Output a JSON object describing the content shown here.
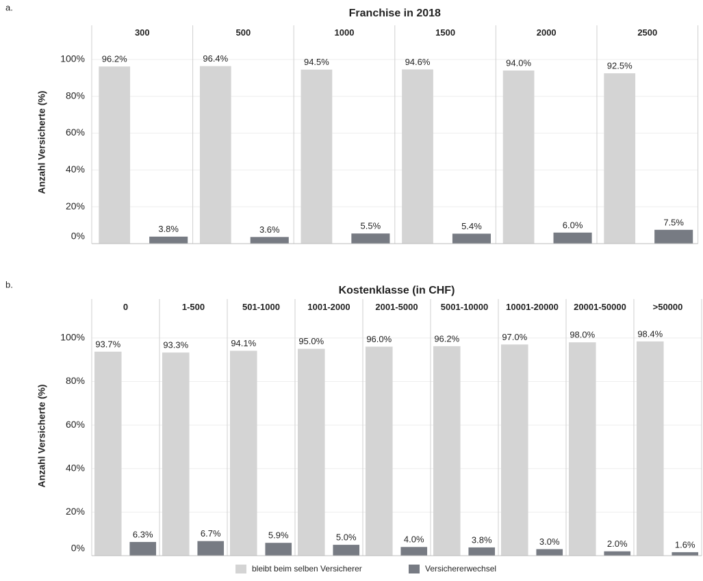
{
  "chart_data": [
    {
      "type": "bar",
      "panel": "a.",
      "title": "Franchise in 2018",
      "y_label": "Anzahl Versicherte (%)",
      "categories": [
        "300",
        "500",
        "1000",
        "1500",
        "2000",
        "2500"
      ],
      "ylim": [
        0,
        110
      ],
      "yticks": [
        {
          "value": 0,
          "label": "0%"
        },
        {
          "value": 20,
          "label": "20%"
        },
        {
          "value": 40,
          "label": "40%"
        },
        {
          "value": 60,
          "label": "60%"
        },
        {
          "value": 80,
          "label": "80%"
        },
        {
          "value": 100,
          "label": "100%"
        }
      ],
      "grid": true,
      "series": [
        {
          "color": "#d4d4d4",
          "values": [
            96.2,
            96.4,
            94.5,
            94.6,
            94.0,
            92.5
          ],
          "value_labels": [
            "96.2%",
            "96.4%",
            "94.5%",
            "94.6%",
            "94.0%",
            "92.5%"
          ]
        },
        {
          "color": "#777b83",
          "values": [
            3.8,
            3.6,
            5.5,
            5.4,
            6.0,
            7.5
          ],
          "value_labels": [
            "3.8%",
            "3.6%",
            "5.5%",
            "5.4%",
            "6.0%",
            "7.5%"
          ]
        }
      ]
    },
    {
      "type": "bar",
      "panel": "b.",
      "title": "Kostenklasse (in CHF)",
      "y_label": "Anzahl Versicherte (%)",
      "categories": [
        "0",
        "1-500",
        "501-1000",
        "1001-2000",
        "2001-5000",
        "5001-10000",
        "10001-20000",
        "20001-50000",
        ">50000"
      ],
      "ylim": [
        0,
        110
      ],
      "yticks": [
        {
          "value": 0,
          "label": "0%"
        },
        {
          "value": 20,
          "label": "20%"
        },
        {
          "value": 40,
          "label": "40%"
        },
        {
          "value": 60,
          "label": "60%"
        },
        {
          "value": 80,
          "label": "80%"
        },
        {
          "value": 100,
          "label": "100%"
        }
      ],
      "grid": true,
      "series": [
        {
          "name": "bleibt beim selben Versicherer",
          "color": "#d4d4d4",
          "values": [
            93.7,
            93.3,
            94.1,
            95.0,
            96.0,
            96.2,
            97.0,
            98.0,
            98.4
          ],
          "value_labels": [
            "93.7%",
            "93.3%",
            "94.1%",
            "95.0%",
            "96.0%",
            "96.2%",
            "97.0%",
            "98.0%",
            "98.4%"
          ]
        },
        {
          "name": "Versichererwechsel",
          "color": "#777b83",
          "values": [
            6.3,
            6.7,
            5.9,
            5.0,
            4.0,
            3.8,
            3.0,
            2.0,
            1.6
          ],
          "value_labels": [
            "6.3%",
            "6.7%",
            "5.9%",
            "5.0%",
            "4.0%",
            "3.8%",
            "3.0%",
            "2.0%",
            "1.6%"
          ]
        }
      ]
    }
  ]
}
